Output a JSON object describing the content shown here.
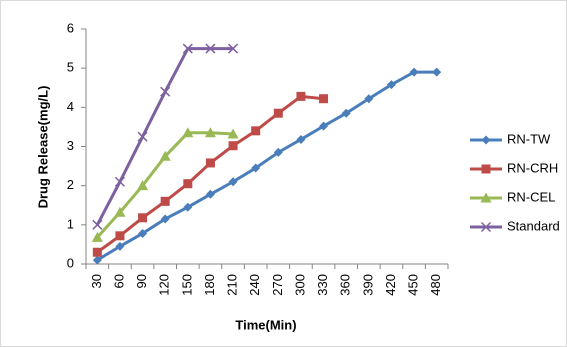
{
  "chart_data": {
    "type": "line",
    "x_label": "Time(Min)",
    "y_label": "Drug Release(mg/L)",
    "categories": [
      "30",
      "60",
      "90",
      "120",
      "150",
      "180",
      "210",
      "240",
      "270",
      "300",
      "330",
      "360",
      "390",
      "420",
      "450",
      "480"
    ],
    "ylim": [
      0,
      6
    ],
    "yticks": [
      0,
      1,
      2,
      3,
      4,
      5,
      6
    ],
    "grid": false,
    "legend": "right",
    "series": [
      {
        "name": "RN-TW",
        "color": "#4a7ebb",
        "marker": "diamond",
        "values": [
          0.1,
          0.45,
          0.78,
          1.15,
          1.45,
          1.78,
          2.1,
          2.45,
          2.85,
          3.18,
          3.52,
          3.85,
          4.22,
          4.58,
          4.9,
          4.9
        ]
      },
      {
        "name": "RN-CRH",
        "color": "#be4b48",
        "marker": "square",
        "values": [
          0.3,
          0.72,
          1.18,
          1.6,
          2.05,
          2.58,
          3.02,
          3.4,
          3.85,
          4.28,
          4.22,
          null,
          null,
          null,
          null,
          null
        ]
      },
      {
        "name": "RN-CEL",
        "color": "#98b954",
        "marker": "triangle",
        "values": [
          0.68,
          1.32,
          2.0,
          2.75,
          3.35,
          3.35,
          3.32,
          null,
          null,
          null,
          null,
          null,
          null,
          null,
          null,
          null
        ]
      },
      {
        "name": "Standard",
        "color": "#7d60a0",
        "marker": "x",
        "values": [
          1.0,
          2.1,
          3.25,
          4.4,
          5.5,
          5.5,
          5.5,
          null,
          null,
          null,
          null,
          null,
          null,
          null,
          null,
          null
        ]
      }
    ]
  }
}
